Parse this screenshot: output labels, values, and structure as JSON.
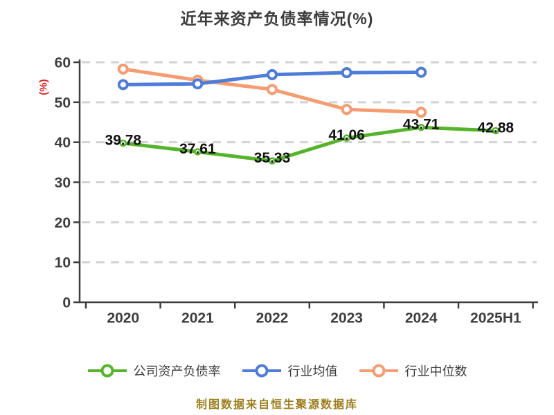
{
  "source_note": "制图数据来自恒生聚源数据库",
  "chart_data": {
    "type": "line",
    "title": "近年来资产负债率情况(%)",
    "categories": [
      "2020",
      "2021",
      "2022",
      "2023",
      "2024",
      "2025H1"
    ],
    "xlabel": "",
    "ylabel": "(%)",
    "ylim": [
      0,
      60
    ],
    "yticks": [
      0,
      10,
      20,
      30,
      40,
      50,
      60
    ],
    "grid": "horizontal-dashed",
    "legend_position": "bottom",
    "series": [
      {
        "name": "公司资产负债率",
        "color": "#55b42b",
        "marker": "small-dot",
        "values": [
          39.78,
          37.61,
          35.33,
          41.06,
          43.71,
          42.88
        ],
        "point_labels": [
          "39.78",
          "37.61",
          "35.33",
          "41.06",
          "43.71",
          "42.88"
        ]
      },
      {
        "name": "行业均值",
        "color": "#4e7cd9",
        "marker": "ring",
        "values": [
          54.4,
          54.6,
          56.9,
          57.4,
          57.5,
          null
        ]
      },
      {
        "name": "行业中位数",
        "color": "#f59c72",
        "marker": "ring",
        "values": [
          58.3,
          55.5,
          53.2,
          48.2,
          47.5,
          null
        ]
      }
    ],
    "colors": {
      "axis": "#3d3d3d",
      "gridline": "#d2d2d2",
      "title": "#3c3c3c",
      "ylabel": "#e02020",
      "point_label": "#111111",
      "source_note": "#9e7e1e",
      "background": "#ffffff"
    }
  }
}
